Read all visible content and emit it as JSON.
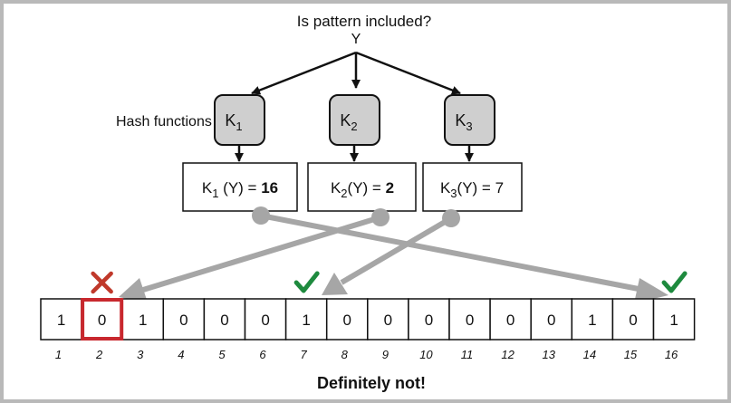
{
  "question": "Is pattern included?",
  "input": "Y",
  "hash_label": "Hash functions",
  "hash_functions": [
    {
      "name": "K",
      "sub": "1"
    },
    {
      "name": "K",
      "sub": "2"
    },
    {
      "name": "K",
      "sub": "3"
    }
  ],
  "results": [
    {
      "fn": "K",
      "sub": "1",
      "arg": " (Y) = ",
      "value": "16"
    },
    {
      "fn": "K",
      "sub": "2",
      "arg": "(Y) = ",
      "value": "2"
    },
    {
      "fn": "K",
      "sub": "3",
      "arg": "(Y) = ",
      "value": "7"
    }
  ],
  "bits": [
    "1",
    "0",
    "1",
    "0",
    "0",
    "0",
    "1",
    "0",
    "0",
    "0",
    "0",
    "0",
    "0",
    "1",
    "0",
    "1"
  ],
  "indices": [
    "1",
    "2",
    "3",
    "4",
    "5",
    "6",
    "7",
    "8",
    "9",
    "10",
    "11",
    "12",
    "13",
    "14",
    "15",
    "16"
  ],
  "marks": [
    {
      "cell": 2,
      "type": "cross-icon",
      "color": "#c0392b"
    },
    {
      "cell": 7,
      "type": "check-icon",
      "color": "#1e8a3e"
    },
    {
      "cell": 16,
      "type": "check-icon",
      "color": "#1e8a3e"
    }
  ],
  "highlight_cell": 2,
  "highlight_color": "#c8282e",
  "verdict": "Definitely not!"
}
